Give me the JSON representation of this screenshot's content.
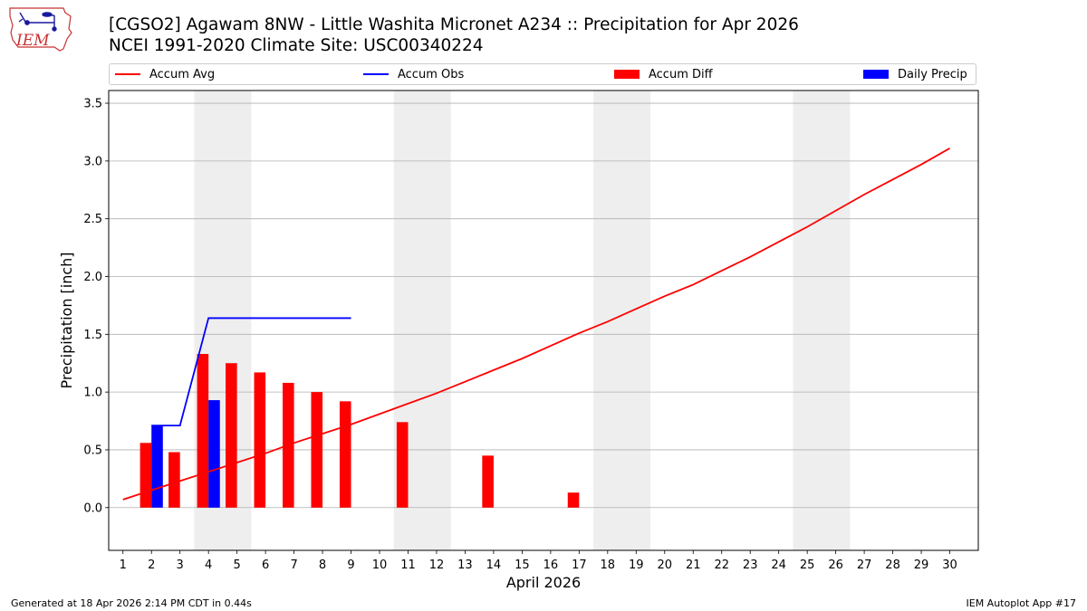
{
  "header": {
    "title_line1": "[CGSO2] Agawam 8NW - Little Washita Micronet A234 :: Precipitation for Apr 2026",
    "title_line2": "NCEI 1991-2020 Climate Site: USC00340224",
    "logo_text": "IEM"
  },
  "footer": {
    "left": "Generated at 18 Apr 2026 2:14 PM CDT in 0.44s",
    "right": "IEM Autoplot App #17"
  },
  "colors": {
    "avg": "#ff0000",
    "obs": "#0000ff",
    "diff": "#ff0000",
    "daily": "#0000ff",
    "weekend_shade": "#eeeeee",
    "grid": "#b0b0b0"
  },
  "chart_data": {
    "type": "bar",
    "xlabel": "April 2026",
    "ylabel": "Precipitation [inch]",
    "xlim": [
      0.5,
      31.0
    ],
    "ylim": [
      -0.37,
      3.61
    ],
    "x_ticks": [
      1,
      2,
      3,
      4,
      5,
      6,
      7,
      8,
      9,
      10,
      11,
      12,
      13,
      14,
      15,
      16,
      17,
      18,
      19,
      20,
      21,
      22,
      23,
      24,
      25,
      26,
      27,
      28,
      29,
      30
    ],
    "y_ticks": [
      0.0,
      0.5,
      1.0,
      1.5,
      2.0,
      2.5,
      3.0,
      3.5
    ],
    "y_tick_labels": [
      "0.0",
      "0.5",
      "1.0",
      "1.5",
      "2.0",
      "2.5",
      "3.0",
      "3.5"
    ],
    "grid": "horizontal",
    "legend_position": "top",
    "weekend_shading": [
      [
        3.5,
        5.5
      ],
      [
        10.5,
        12.5
      ],
      [
        17.5,
        19.5
      ],
      [
        24.5,
        26.5
      ]
    ],
    "legend": [
      "Accum Avg",
      "Accum Obs",
      "Accum Diff",
      "Daily Precip"
    ],
    "series": [
      {
        "name": "Accum Avg",
        "kind": "line",
        "x": [
          1,
          2,
          3,
          4,
          5,
          6,
          7,
          8,
          9,
          10,
          11,
          12,
          13,
          14,
          15,
          16,
          17,
          18,
          19,
          20,
          21,
          22,
          23,
          24,
          25,
          26,
          27,
          28,
          29,
          30
        ],
        "values": [
          0.07,
          0.15,
          0.23,
          0.31,
          0.39,
          0.47,
          0.56,
          0.64,
          0.72,
          0.81,
          0.9,
          0.99,
          1.09,
          1.19,
          1.29,
          1.4,
          1.51,
          1.61,
          1.72,
          1.83,
          1.93,
          2.05,
          2.17,
          2.3,
          2.43,
          2.57,
          2.71,
          2.84,
          2.97,
          3.11
        ]
      },
      {
        "name": "Accum Obs",
        "kind": "line",
        "x": [
          2,
          3,
          4,
          5,
          6,
          7,
          8,
          9
        ],
        "values": [
          0.71,
          0.71,
          1.64,
          1.64,
          1.64,
          1.64,
          1.64,
          1.64
        ]
      },
      {
        "name": "Accum Diff",
        "kind": "bar",
        "x": [
          2,
          3,
          4,
          5,
          6,
          7,
          8,
          9,
          11,
          14,
          17
        ],
        "values": [
          0.56,
          0.48,
          1.33,
          1.25,
          1.17,
          1.08,
          1.0,
          0.92,
          0.74,
          0.45,
          0.13
        ]
      },
      {
        "name": "Daily Precip",
        "kind": "bar",
        "x": [
          2,
          4
        ],
        "values": [
          0.71,
          0.93
        ]
      }
    ]
  }
}
